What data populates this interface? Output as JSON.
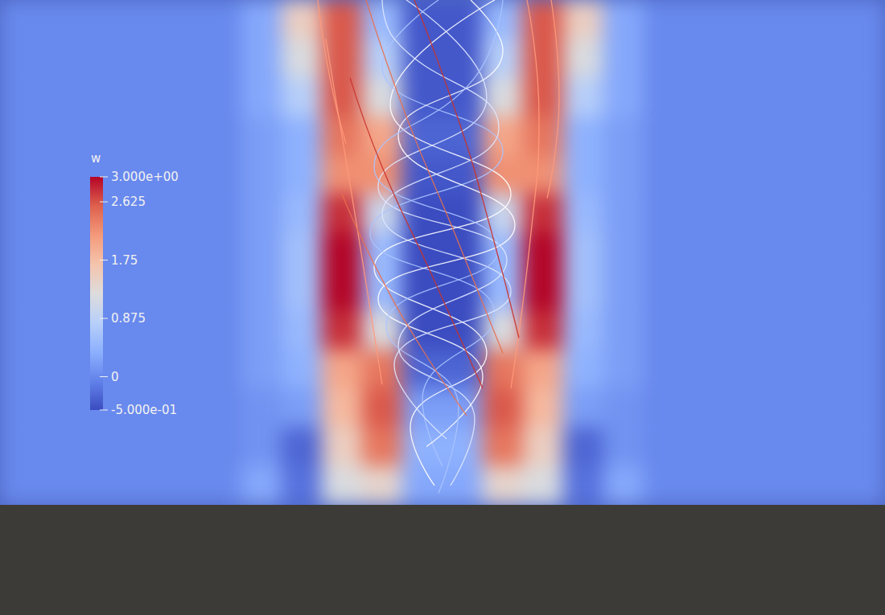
{
  "chart_data": {
    "type": "heatmap",
    "tick_labels": false,
    "cells": [
      [
        0,
        0,
        0,
        0,
        0,
        0,
        0.3,
        1.5,
        2.6,
        0.5,
        -0.4,
        -0.4,
        0.5,
        2.6,
        1.5,
        0.3,
        0,
        0,
        0,
        0,
        0,
        0
      ],
      [
        0,
        0,
        0,
        0,
        0,
        0,
        0.3,
        1.2,
        2.6,
        0.8,
        -0.4,
        -0.4,
        0.8,
        2.6,
        1.2,
        0.3,
        0,
        0,
        0,
        0,
        0,
        0
      ],
      [
        0,
        0,
        0,
        0,
        0,
        0,
        0.3,
        0.8,
        2.6,
        1.2,
        -0.4,
        -0.4,
        1.2,
        2.6,
        0.8,
        0.3,
        0,
        0,
        0,
        0,
        0,
        0
      ],
      [
        0,
        0,
        0,
        0,
        0,
        0,
        0.2,
        0.4,
        2.4,
        2.0,
        -0.3,
        -0.3,
        2.0,
        2.4,
        0.4,
        0.2,
        0,
        0,
        0,
        0,
        0,
        0
      ],
      [
        0,
        0,
        0,
        0,
        0,
        0,
        0.2,
        0.4,
        2.2,
        2.2,
        -0.4,
        -0.4,
        2.2,
        2.2,
        0.4,
        0.2,
        0,
        0,
        0,
        0,
        0,
        0
      ],
      [
        0,
        0,
        0,
        0,
        0,
        0,
        0.2,
        0.5,
        2.8,
        1.0,
        -0.5,
        -0.5,
        1.0,
        2.8,
        0.5,
        0.2,
        0,
        0,
        0,
        0,
        0,
        0
      ],
      [
        0,
        0,
        0,
        0,
        0,
        0,
        0.2,
        0.6,
        3.0,
        0.5,
        -0.5,
        -0.5,
        0.5,
        3.0,
        0.6,
        0.2,
        0,
        0,
        0,
        0,
        0,
        0
      ],
      [
        0,
        0,
        0,
        0,
        0,
        0,
        0.2,
        0.6,
        3.0,
        0.5,
        -0.5,
        -0.5,
        0.5,
        3.0,
        0.6,
        0.2,
        0,
        0,
        0,
        0,
        0,
        0
      ],
      [
        0,
        0,
        0,
        0,
        0,
        0,
        0.2,
        0.5,
        2.8,
        1.2,
        -0.5,
        -0.5,
        1.2,
        2.8,
        0.5,
        0.2,
        0,
        0,
        0,
        0,
        0,
        0
      ],
      [
        0,
        0,
        0,
        0,
        0,
        0,
        0.2,
        0.4,
        2.0,
        2.4,
        -0.3,
        -0.3,
        2.4,
        2.0,
        0.4,
        0.2,
        0,
        0,
        0,
        0,
        0,
        0
      ],
      [
        0,
        0,
        0,
        0,
        0,
        0,
        0.1,
        0.2,
        1.8,
        2.6,
        0.2,
        0.2,
        2.6,
        1.8,
        0.2,
        0.1,
        0,
        0,
        0,
        0,
        0,
        0
      ],
      [
        0,
        0,
        0,
        0,
        0,
        0,
        0.1,
        -0.3,
        1.5,
        2.4,
        0.4,
        0.4,
        2.4,
        1.5,
        -0.3,
        0.1,
        0,
        0,
        0,
        0,
        0,
        0
      ],
      [
        0,
        0,
        0,
        0,
        0,
        0,
        0.3,
        -0.2,
        1.2,
        1.4,
        0.3,
        0.3,
        1.4,
        1.2,
        -0.2,
        0.3,
        0,
        0,
        0,
        0,
        0,
        0
      ]
    ],
    "colorbar": {
      "title": "w",
      "range": [
        -0.5,
        3
      ],
      "ticks": [
        {
          "value": 3,
          "label": "3.000e+00"
        },
        2.625,
        1.75,
        0.875,
        0,
        {
          "value": -0.5,
          "label": "-5.000e-01"
        }
      ]
    },
    "streamlines": [
      {
        "color": "#ffffff",
        "points": [
          [
            10.3,
            12.0
          ],
          [
            9.7,
            10.5
          ],
          [
            11.6,
            8.6
          ],
          [
            8.8,
            6.4
          ],
          [
            12.2,
            4.5
          ],
          [
            9.2,
            2.2
          ],
          [
            11.8,
            -0.5
          ]
        ]
      },
      {
        "color": "#dfe8ff",
        "points": [
          [
            10.7,
            12.0
          ],
          [
            11.3,
            10.3
          ],
          [
            9.4,
            8.4
          ],
          [
            12.1,
            6.2
          ],
          [
            8.9,
            4.3
          ],
          [
            11.6,
            2.0
          ],
          [
            9.6,
            -0.5
          ]
        ]
      },
      {
        "color": "#aac4ff",
        "points": [
          [
            10.5,
            11.5
          ],
          [
            10.0,
            9.8
          ],
          [
            11.8,
            7.6
          ],
          [
            8.7,
            5.5
          ],
          [
            12.0,
            3.4
          ],
          [
            9.0,
            1.2
          ],
          [
            10.4,
            -0.5
          ]
        ]
      },
      {
        "color": "#ffffff",
        "points": [
          [
            10.1,
            11.0
          ],
          [
            11.5,
            9.2
          ],
          [
            8.9,
            7.2
          ],
          [
            12.3,
            5.3
          ],
          [
            9.4,
            3.0
          ],
          [
            12.0,
            0.8
          ],
          [
            11.2,
            -0.5
          ]
        ]
      },
      {
        "color": "#dfe8ff",
        "points": [
          [
            10.6,
            10.8
          ],
          [
            9.3,
            8.9
          ],
          [
            12.2,
            7.0
          ],
          [
            9.0,
            5.0
          ],
          [
            11.9,
            2.8
          ],
          [
            9.3,
            0.5
          ],
          [
            9.0,
            -0.5
          ]
        ]
      },
      {
        "color": "#aac4ff",
        "points": [
          [
            10.4,
            12.2
          ],
          [
            10.9,
            10.0
          ],
          [
            9.1,
            7.9
          ],
          [
            11.9,
            5.9
          ],
          [
            8.8,
            3.8
          ],
          [
            11.3,
            1.5
          ],
          [
            12.0,
            -0.5
          ]
        ]
      },
      {
        "color": "#c8322a",
        "points": [
          [
            8.2,
            1.5
          ],
          [
            9.0,
            3.8
          ],
          [
            10.2,
            6.5
          ],
          [
            11.5,
            9.5
          ]
        ]
      },
      {
        "color": "#e8704f",
        "points": [
          [
            8.6,
            -0.5
          ],
          [
            9.6,
            2.5
          ],
          [
            10.8,
            5.5
          ],
          [
            12.0,
            8.6
          ]
        ]
      },
      {
        "color": "#ff9a7a",
        "points": [
          [
            7.6,
            0.5
          ],
          [
            8.0,
            3.0
          ],
          [
            8.4,
            5.5
          ],
          [
            9.0,
            9.4
          ]
        ]
      },
      {
        "color": "#ff9a7a",
        "points": [
          [
            12.6,
            -0.5
          ],
          [
            12.9,
            2.5
          ],
          [
            12.7,
            5.5
          ],
          [
            12.2,
            9.5
          ]
        ]
      },
      {
        "color": "#c8322a",
        "points": [
          [
            9.8,
            -0.5
          ],
          [
            10.9,
            2.6
          ],
          [
            11.7,
            5.4
          ],
          [
            12.4,
            8.2
          ]
        ]
      },
      {
        "color": "#e8704f",
        "points": [
          [
            8.0,
            4.5
          ],
          [
            8.9,
            6.5
          ],
          [
            10.0,
            8.5
          ],
          [
            11.1,
            10.2
          ]
        ]
      },
      {
        "color": "#ff9a7a",
        "points": [
          [
            13.2,
            -0.5
          ],
          [
            13.4,
            2.0
          ],
          [
            13.1,
            4.6
          ]
        ]
      },
      {
        "color": "#ff9a7a",
        "points": [
          [
            7.4,
            -0.5
          ],
          [
            7.7,
            1.5
          ],
          [
            8.1,
            3.2
          ]
        ]
      }
    ]
  }
}
